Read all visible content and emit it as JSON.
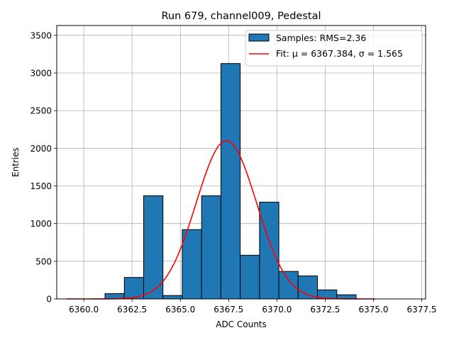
{
  "chart_data": {
    "type": "bar",
    "title": "Run 679, channel009, Pedestal",
    "xlabel": "ADC Counts",
    "ylabel": "Entries",
    "xlim": [
      6358.6,
      6377.7
    ],
    "ylim": [
      0,
      3630
    ],
    "grid": true,
    "legend_position": "top-right",
    "x_ticks": [
      6360.0,
      6362.5,
      6365.0,
      6367.5,
      6370.0,
      6372.5,
      6375.0,
      6377.5
    ],
    "x_tick_labels": [
      "6360.0",
      "6362.5",
      "6365.0",
      "6367.5",
      "6370.0",
      "6372.5",
      "6375.0",
      "6377.5"
    ],
    "y_ticks": [
      0,
      500,
      1000,
      1500,
      2000,
      2500,
      3000,
      3500
    ],
    "y_tick_labels": [
      "0",
      "500",
      "1000",
      "1500",
      "2000",
      "2500",
      "3000",
      "3500"
    ],
    "bin_edges": [
      6359.1,
      6360.1,
      6361.1,
      6362.1,
      6363.1,
      6364.1,
      6365.1,
      6366.1,
      6367.1,
      6368.1,
      6369.1,
      6370.1,
      6371.1,
      6372.1,
      6373.1,
      6374.1,
      6375.1
    ],
    "histogram": {
      "name": "Samples: RMS=2.36",
      "color": "#1f77b4",
      "edgecolor": "#000000",
      "counts": [
        0,
        0,
        70,
        285,
        1370,
        45,
        920,
        1370,
        3125,
        580,
        1285,
        365,
        305,
        120,
        55,
        0
      ]
    },
    "fit": {
      "name": "Fit: μ = 6367.384, σ = 1.565",
      "color": "#ff0000",
      "mu": 6367.384,
      "sigma": 1.565,
      "amplitude": 2100,
      "x_range": [
        6359.1,
        6375.1
      ]
    },
    "legend": [
      {
        "label_prefix": "Samples: RMS=2.36",
        "kind": "patch"
      },
      {
        "label": "Fit: μ = 6367.384, σ = 1.565",
        "kind": "line"
      }
    ]
  }
}
